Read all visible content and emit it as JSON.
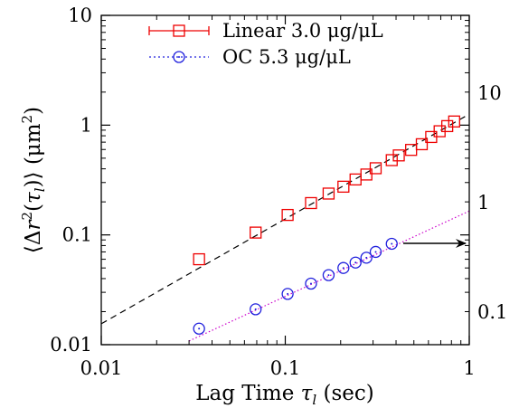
{
  "chart_data": {
    "type": "scatter",
    "xscale": "log",
    "yscale": "log",
    "xlim": [
      0.01,
      1
    ],
    "ylim": [
      0.01,
      10
    ],
    "xlabel": "Lag Time τl (sec)",
    "ylabel": "⟨Δr²(τl)⟩ (μm²)",
    "xticks": [
      {
        "value": 0.01,
        "label": "0.01"
      },
      {
        "value": 0.1,
        "label": "0.1"
      },
      {
        "value": 1,
        "label": "1"
      }
    ],
    "yticks": [
      {
        "value": 0.01,
        "label": "0.01"
      },
      {
        "value": 0.1,
        "label": "0.1"
      },
      {
        "value": 1,
        "label": "1"
      },
      {
        "value": 10,
        "label": "10"
      }
    ],
    "secondary_yticks": [
      {
        "value": 0.1,
        "label": "0.1"
      },
      {
        "value": 1,
        "label": "1"
      },
      {
        "value": 10,
        "label": "10"
      }
    ],
    "series": [
      {
        "name": "Linear 3.0 μg/μL",
        "color": "#ee0000",
        "marker": "square",
        "line": "solid",
        "x": [
          0.034,
          0.069,
          0.103,
          0.138,
          0.172,
          0.207,
          0.241,
          0.276,
          0.31,
          0.379,
          0.414,
          0.483,
          0.552,
          0.621,
          0.69,
          0.759,
          0.828
        ],
        "y": [
          0.06,
          0.105,
          0.152,
          0.195,
          0.238,
          0.275,
          0.32,
          0.355,
          0.405,
          0.48,
          0.53,
          0.595,
          0.67,
          0.78,
          0.88,
          0.98,
          1.08
        ]
      },
      {
        "name": "OC 5.3 μg/μL",
        "color": "#2020dd",
        "marker": "circle",
        "line": "dotted",
        "x": [
          0.034,
          0.069,
          0.103,
          0.138,
          0.172,
          0.207,
          0.241,
          0.276,
          0.31,
          0.379
        ],
        "y": [
          0.014,
          0.021,
          0.029,
          0.036,
          0.043,
          0.05,
          0.056,
          0.062,
          0.07,
          0.083
        ]
      }
    ],
    "fits": [
      {
        "style": "dashed",
        "color": "#000000",
        "from": [
          0.01,
          0.0155
        ],
        "to": [
          1,
          1.26
        ]
      },
      {
        "style": "dotted",
        "color": "#cc00cc",
        "from": [
          0.03,
          0.0108
        ],
        "to": [
          1,
          0.165
        ]
      }
    ],
    "annotation": {
      "type": "arrow",
      "direction": "right",
      "at_y": 0.08
    }
  },
  "legend": [
    {
      "label": "Linear 3.0 μg/μL",
      "color": "#ee0000",
      "marker": "square",
      "line": "solid"
    },
    {
      "label": "OC 5.3 μg/μL",
      "color": "#2020dd",
      "marker": "circle",
      "line": "dotted"
    }
  ],
  "axes": {
    "xtitle_main": "Lag Time ",
    "xtitle_tau": "τ",
    "xtitle_sub": "l",
    "xtitle_unit": " (sec)",
    "ytitle_open": "⟨Δ",
    "ytitle_r": "r",
    "ytitle_sup": "2",
    "ytitle_paren": "(",
    "ytitle_tau": "τ",
    "ytitle_sub": "l",
    "ytitle_close": ")⟩ (μm",
    "ytitle_sup2": "2",
    "ytitle_end": ")"
  }
}
